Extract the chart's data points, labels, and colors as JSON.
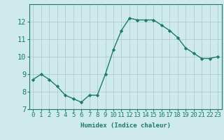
{
  "x": [
    0,
    1,
    2,
    3,
    4,
    5,
    6,
    7,
    8,
    9,
    10,
    11,
    12,
    13,
    14,
    15,
    16,
    17,
    18,
    19,
    20,
    21,
    22,
    23
  ],
  "y": [
    8.7,
    9.0,
    8.7,
    8.3,
    7.8,
    7.6,
    7.4,
    7.8,
    7.8,
    9.0,
    10.4,
    11.5,
    12.2,
    12.1,
    12.1,
    12.1,
    11.8,
    11.5,
    11.1,
    10.5,
    10.2,
    9.9,
    9.9,
    10.0
  ],
  "line_color": "#1d7a6a",
  "marker": "D",
  "marker_size": 2.2,
  "bg_color": "#ceeaea",
  "grid_color": "#b0cccc",
  "xlabel": "Humidex (Indice chaleur)",
  "ylim": [
    7,
    13
  ],
  "xlim": [
    -0.5,
    23.5
  ],
  "yticks": [
    7,
    8,
    9,
    10,
    11,
    12
  ],
  "xticks": [
    0,
    1,
    2,
    3,
    4,
    5,
    6,
    7,
    8,
    9,
    10,
    11,
    12,
    13,
    14,
    15,
    16,
    17,
    18,
    19,
    20,
    21,
    22,
    23
  ],
  "xtick_labels": [
    "0",
    "1",
    "2",
    "3",
    "4",
    "5",
    "6",
    "7",
    "8",
    "9",
    "10",
    "11",
    "12",
    "13",
    "14",
    "15",
    "16",
    "17",
    "18",
    "19",
    "20",
    "21",
    "22",
    "23"
  ],
  "tick_color": "#1d7a6a",
  "label_fontsize": 6.5,
  "tick_fontsize": 6.5,
  "ytick_fontsize": 7.5,
  "linewidth": 1.0
}
